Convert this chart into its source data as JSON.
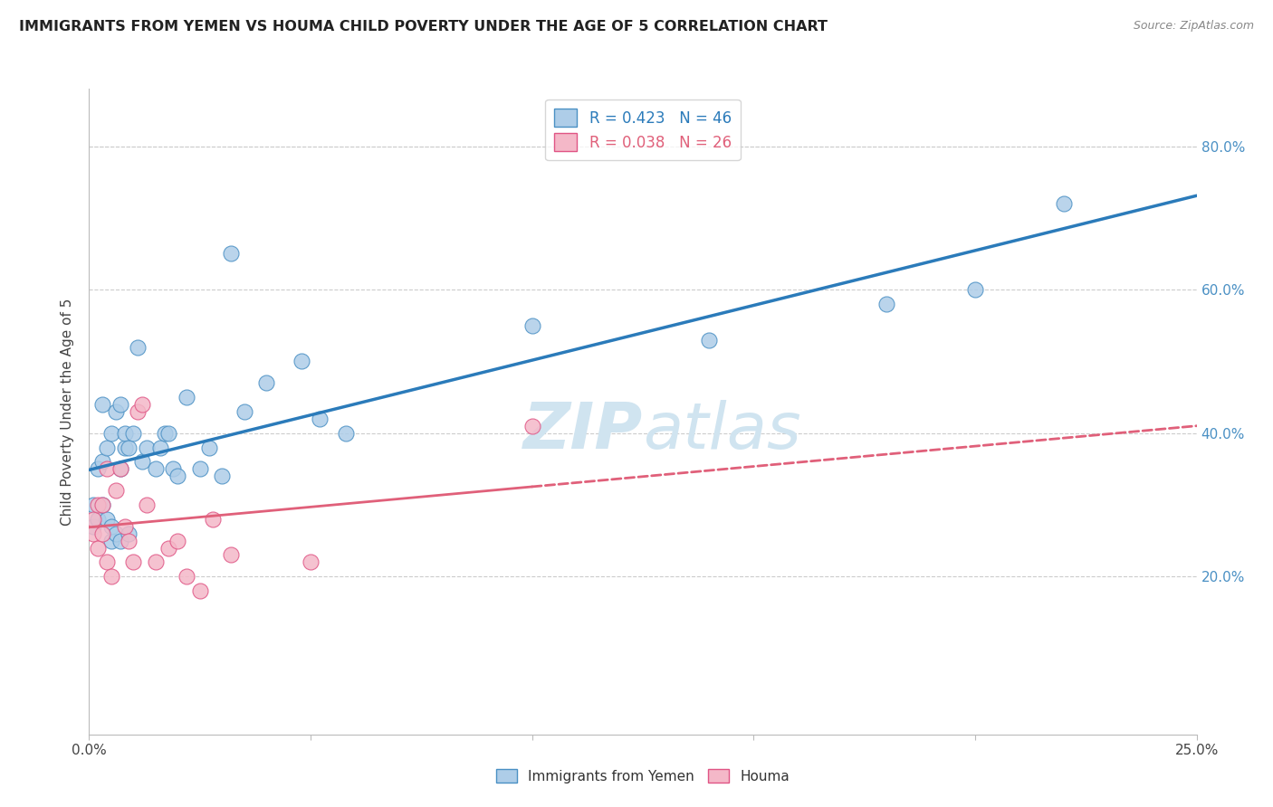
{
  "title": "IMMIGRANTS FROM YEMEN VS HOUMA CHILD POVERTY UNDER THE AGE OF 5 CORRELATION CHART",
  "source": "Source: ZipAtlas.com",
  "ylabel": "Child Poverty Under the Age of 5",
  "ytick_labels": [
    "20.0%",
    "40.0%",
    "60.0%",
    "80.0%"
  ],
  "ytick_values": [
    0.2,
    0.4,
    0.6,
    0.8
  ],
  "xlim": [
    0.0,
    0.25
  ],
  "ylim": [
    -0.02,
    0.88
  ],
  "blue_R": "R = 0.423",
  "blue_N": "N = 46",
  "pink_R": "R = 0.038",
  "pink_N": "N = 26",
  "blue_scatter_x": [
    0.001,
    0.001,
    0.002,
    0.002,
    0.003,
    0.003,
    0.003,
    0.004,
    0.004,
    0.005,
    0.005,
    0.005,
    0.006,
    0.006,
    0.007,
    0.007,
    0.007,
    0.008,
    0.008,
    0.009,
    0.009,
    0.01,
    0.011,
    0.012,
    0.013,
    0.015,
    0.016,
    0.017,
    0.018,
    0.019,
    0.02,
    0.022,
    0.025,
    0.027,
    0.03,
    0.032,
    0.035,
    0.04,
    0.048,
    0.052,
    0.058,
    0.1,
    0.14,
    0.18,
    0.2,
    0.22
  ],
  "blue_scatter_y": [
    0.27,
    0.3,
    0.28,
    0.35,
    0.3,
    0.36,
    0.44,
    0.28,
    0.38,
    0.25,
    0.27,
    0.4,
    0.26,
    0.43,
    0.25,
    0.35,
    0.44,
    0.38,
    0.4,
    0.26,
    0.38,
    0.4,
    0.52,
    0.36,
    0.38,
    0.35,
    0.38,
    0.4,
    0.4,
    0.35,
    0.34,
    0.45,
    0.35,
    0.38,
    0.34,
    0.65,
    0.43,
    0.47,
    0.5,
    0.42,
    0.4,
    0.55,
    0.53,
    0.58,
    0.6,
    0.72
  ],
  "pink_scatter_x": [
    0.001,
    0.001,
    0.002,
    0.002,
    0.003,
    0.003,
    0.004,
    0.004,
    0.005,
    0.006,
    0.007,
    0.008,
    0.009,
    0.01,
    0.011,
    0.012,
    0.013,
    0.015,
    0.018,
    0.02,
    0.022,
    0.025,
    0.028,
    0.032,
    0.05,
    0.1
  ],
  "pink_scatter_y": [
    0.26,
    0.28,
    0.24,
    0.3,
    0.26,
    0.3,
    0.22,
    0.35,
    0.2,
    0.32,
    0.35,
    0.27,
    0.25,
    0.22,
    0.43,
    0.44,
    0.3,
    0.22,
    0.24,
    0.25,
    0.2,
    0.18,
    0.28,
    0.23,
    0.22,
    0.41
  ],
  "blue_color": "#aecde8",
  "pink_color": "#f4b8c8",
  "blue_edge_color": "#4a90c4",
  "pink_edge_color": "#e05585",
  "blue_line_color": "#2b7bba",
  "pink_line_color": "#e0607a",
  "watermark_color": "#d0e4f0",
  "background_color": "#ffffff",
  "grid_color": "#cccccc",
  "watermark_text": "ZIP atlas"
}
